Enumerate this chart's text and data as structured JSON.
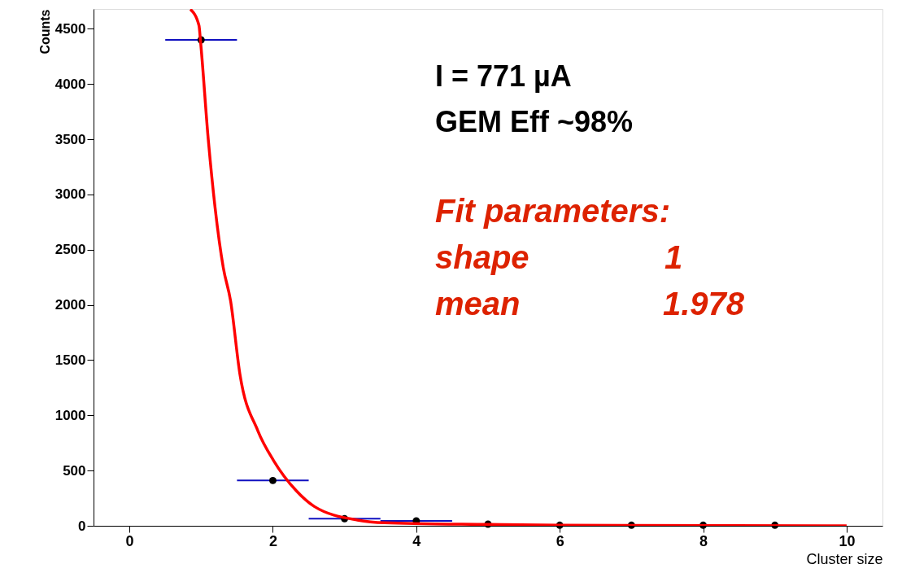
{
  "chart_data": {
    "type": "scatter",
    "xlabel": "Cluster size",
    "ylabel": "Counts",
    "xlim": [
      -0.5,
      10.5
    ],
    "xticks": [
      0,
      2,
      4,
      6,
      8,
      10
    ],
    "ylim": [
      0,
      4680
    ],
    "yticks": [
      0,
      500,
      1000,
      1500,
      2000,
      2500,
      3000,
      3500,
      4000,
      4500
    ],
    "grid": false,
    "series": [
      {
        "color": "#000000",
        "marker": "circle",
        "x": [
          1,
          2,
          3,
          4,
          5,
          6,
          7,
          8,
          9
        ],
        "values": [
          4400,
          410,
          64,
          45,
          15,
          5,
          5,
          5,
          5
        ],
        "xerrors": [
          0.5,
          0.5,
          0.5,
          0.5,
          null,
          null,
          null,
          null,
          null
        ]
      },
      {
        "type": "line",
        "color": "#ff0000",
        "marker": "none",
        "x": [
          0.85,
          0.97,
          0.99,
          1.1,
          1.31,
          1.41,
          1.54,
          1.79,
          2.01,
          2.32,
          2.58,
          3.18,
          3.56,
          5,
          6,
          10
        ],
        "values": [
          4677,
          4531,
          4400,
          3496,
          2334,
          2040,
          1377,
          862,
          591,
          322,
          174,
          52,
          27,
          12,
          5,
          0
        ]
      }
    ],
    "annotations": [
      "I = 771 µA",
      "GEM Eff ~98%",
      "Fit parameters:",
      "shape",
      "1",
      "mean",
      "1.978"
    ]
  }
}
